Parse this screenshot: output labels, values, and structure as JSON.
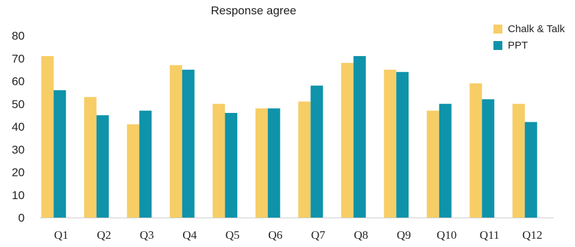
{
  "chart_data": {
    "type": "bar",
    "title": "Response agree",
    "xlabel": "",
    "ylabel": "",
    "ylim": [
      0,
      80
    ],
    "yticks": [
      0,
      10,
      20,
      30,
      40,
      50,
      60,
      70,
      80
    ],
    "grid": false,
    "legend_position": "top-right",
    "categories": [
      "Q1",
      "Q2",
      "Q3",
      "Q4",
      "Q5",
      "Q6",
      "Q7",
      "Q8",
      "Q9",
      "Q10",
      "Q11",
      "Q12"
    ],
    "series": [
      {
        "name": "Chalk & Talk",
        "color": "#F7CD66",
        "values": [
          71,
          53,
          41,
          67,
          50,
          48,
          51,
          68,
          65,
          47,
          59,
          50
        ]
      },
      {
        "name": "PPT",
        "color": "#0E93AA",
        "values": [
          56,
          45,
          47,
          65,
          46,
          48,
          58,
          71,
          64,
          50,
          52,
          42
        ]
      }
    ]
  }
}
